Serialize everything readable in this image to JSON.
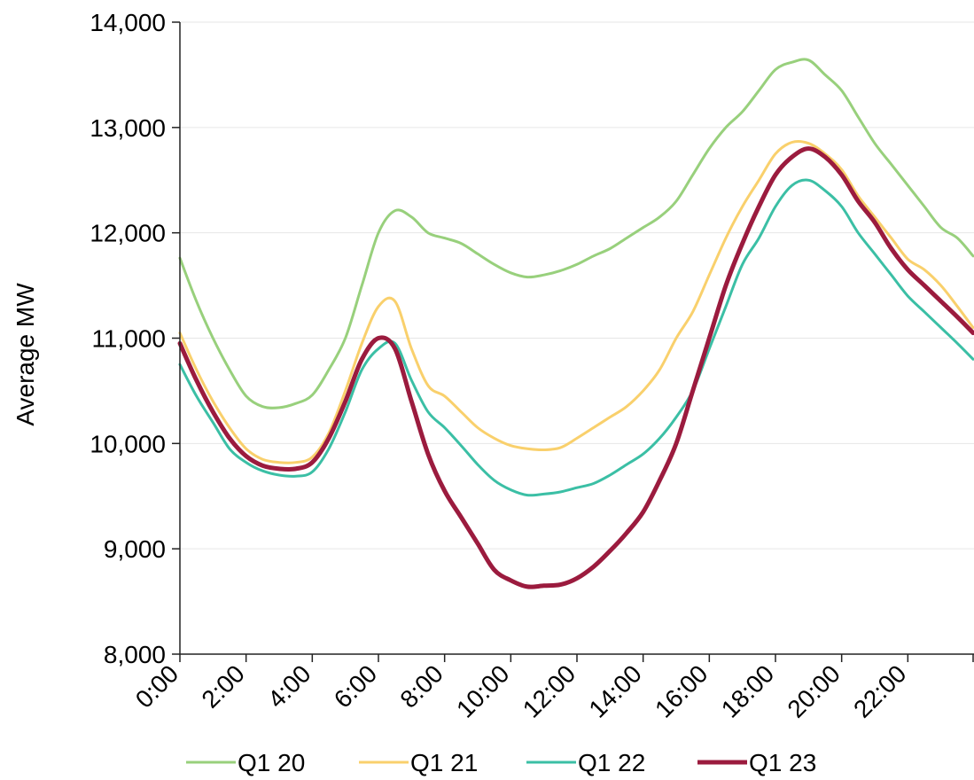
{
  "chart_data": {
    "type": "line",
    "title": "",
    "xlabel": "",
    "ylabel": "Average MW",
    "ylim": [
      8000,
      14000
    ],
    "yticks": [
      8000,
      9000,
      10000,
      11000,
      12000,
      13000,
      14000
    ],
    "ytick_labels": [
      "8,000",
      "9,000",
      "10,000",
      "11,000",
      "12,000",
      "13,000",
      "14,000"
    ],
    "xlim": [
      0,
      24
    ],
    "xticks": [
      0,
      2,
      4,
      6,
      8,
      10,
      12,
      14,
      16,
      18,
      20,
      22
    ],
    "xtick_labels": [
      "0:00",
      "2:00",
      "4:00",
      "6:00",
      "8:00",
      "10:00",
      "12:00",
      "14:00",
      "16:00",
      "18:00",
      "20:00",
      "22:00"
    ],
    "grid": "horizontal",
    "legend_position": "bottom",
    "x": [
      0,
      0.5,
      1,
      1.5,
      2,
      2.5,
      3,
      3.5,
      4,
      4.5,
      5,
      5.5,
      6,
      6.5,
      7,
      7.5,
      8,
      8.5,
      9,
      9.5,
      10,
      10.5,
      11,
      11.5,
      12,
      12.5,
      13,
      13.5,
      14,
      14.5,
      15,
      15.5,
      16,
      16.5,
      17,
      17.5,
      18,
      18.5,
      19,
      19.5,
      20,
      20.5,
      21,
      21.5,
      22,
      22.5,
      23,
      23.5,
      24
    ],
    "series": [
      {
        "name": "Q1 20",
        "color": "#98d07c",
        "values": [
          11760,
          11350,
          11000,
          10700,
          10450,
          10350,
          10340,
          10380,
          10460,
          10700,
          11000,
          11500,
          12000,
          12210,
          12150,
          12000,
          11950,
          11900,
          11800,
          11700,
          11620,
          11580,
          11600,
          11640,
          11700,
          11780,
          11850,
          11950,
          12050,
          12150,
          12300,
          12550,
          12800,
          13000,
          13150,
          13350,
          13550,
          13620,
          13640,
          13500,
          13350,
          13100,
          12850,
          12650,
          12450,
          12250,
          12050,
          11950,
          11780
        ]
      },
      {
        "name": "Q1 21",
        "color": "#f9d06c",
        "values": [
          11050,
          10700,
          10400,
          10150,
          9950,
          9850,
          9820,
          9820,
          9870,
          10100,
          10500,
          10950,
          11300,
          11350,
          10900,
          10550,
          10450,
          10300,
          10150,
          10050,
          9980,
          9950,
          9940,
          9960,
          10050,
          10150,
          10250,
          10350,
          10500,
          10700,
          11000,
          11250,
          11600,
          11950,
          12250,
          12500,
          12750,
          12860,
          12850,
          12750,
          12600,
          12350,
          12150,
          11950,
          11750,
          11650,
          11500,
          11300,
          11100
        ]
      },
      {
        "name": "Q1 22",
        "color": "#3bbfa5",
        "values": [
          10750,
          10450,
          10200,
          9950,
          9820,
          9740,
          9700,
          9690,
          9730,
          9950,
          10300,
          10700,
          10900,
          10950,
          10600,
          10300,
          10150,
          9980,
          9800,
          9650,
          9560,
          9510,
          9520,
          9540,
          9580,
          9620,
          9700,
          9800,
          9900,
          10050,
          10250,
          10500,
          10900,
          11300,
          11700,
          11950,
          12250,
          12450,
          12500,
          12400,
          12250,
          12000,
          11800,
          11600,
          11400,
          11250,
          11100,
          10950,
          10800
        ]
      },
      {
        "name": "Q1 23",
        "color": "#9b1b3e",
        "values": [
          10950,
          10600,
          10300,
          10050,
          9880,
          9790,
          9760,
          9760,
          9820,
          10050,
          10400,
          10800,
          11000,
          10900,
          10400,
          9900,
          9550,
          9300,
          9050,
          8800,
          8700,
          8640,
          8650,
          8660,
          8720,
          8830,
          8980,
          9150,
          9350,
          9650,
          10000,
          10500,
          11000,
          11500,
          11900,
          12250,
          12550,
          12720,
          12800,
          12720,
          12550,
          12300,
          12100,
          11850,
          11650,
          11500,
          11350,
          11200,
          11050
        ]
      }
    ]
  }
}
